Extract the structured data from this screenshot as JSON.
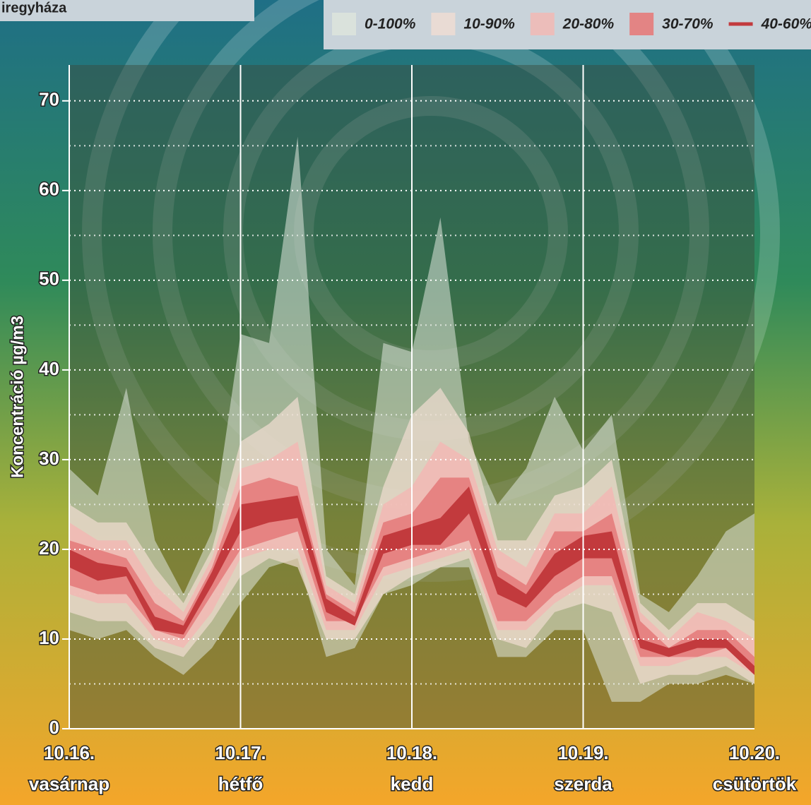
{
  "chart_data": {
    "type": "fan",
    "title": "iregyháza",
    "y_label": "Koncentráció µg/m3",
    "x": [
      0,
      4,
      8,
      12,
      16,
      20,
      24,
      28,
      32,
      36,
      40,
      44,
      48,
      52,
      56,
      60,
      64,
      68,
      72,
      76,
      80,
      84,
      88,
      92,
      96
    ],
    "xlim": [
      0,
      96
    ],
    "xticks": [
      {
        "value": 0,
        "label": "10.16."
      },
      {
        "value": 24,
        "label": "10.17."
      },
      {
        "value": 48,
        "label": "10.18."
      },
      {
        "value": 72,
        "label": "10.19."
      },
      {
        "value": 96,
        "label": "10.20."
      }
    ],
    "weekdays": [
      "vasárnap",
      "hétfő",
      "kedd",
      "szerda",
      "csütörtök"
    ],
    "ylim": [
      0,
      74
    ],
    "yticks": [
      0,
      10,
      20,
      30,
      40,
      50,
      60,
      70
    ],
    "minor_yticks": [
      5,
      15,
      25,
      35,
      45,
      55,
      65
    ],
    "grid": true,
    "series": [
      {
        "name": "0-100%",
        "color": "#dfe6dc",
        "opacity": 0.55,
        "marker": "square",
        "upper": [
          29,
          26,
          38,
          21,
          15,
          22,
          44,
          43,
          66,
          20,
          16,
          43,
          42,
          57,
          32,
          25,
          29,
          37,
          31,
          35,
          15,
          13,
          17,
          22,
          24
        ],
        "lower": [
          11,
          10,
          11,
          8,
          6,
          9,
          14,
          18,
          19,
          8,
          9,
          15,
          16,
          18,
          18,
          8,
          8,
          11,
          11,
          3,
          3,
          5,
          5,
          6,
          5
        ]
      },
      {
        "name": "10-90%",
        "color": "#f1ddd2",
        "opacity": 0.7,
        "marker": "square",
        "upper": [
          25,
          23,
          23,
          18,
          14,
          20,
          32,
          34,
          37,
          17,
          15,
          27,
          35,
          38,
          33,
          21,
          21,
          26,
          27,
          30,
          14,
          11,
          14,
          14,
          12
        ],
        "lower": [
          13,
          12,
          12,
          9,
          8,
          12,
          17,
          19,
          18,
          10,
          10,
          15,
          17,
          18,
          19,
          10,
          9,
          13,
          14,
          13,
          5,
          6,
          6,
          7,
          5
        ]
      },
      {
        "name": "20-80%",
        "color": "#f2b9b4",
        "opacity": 0.85,
        "marker": "square",
        "upper": [
          23,
          21,
          21,
          16,
          13,
          19,
          29,
          30,
          32,
          16,
          14,
          25,
          27,
          32,
          30,
          20,
          18,
          24,
          24,
          27,
          13,
          10,
          13,
          12,
          10
        ],
        "lower": [
          15,
          14,
          14,
          10,
          9,
          13,
          19,
          20,
          20,
          11,
          11,
          17,
          18,
          19,
          20,
          11,
          11,
          14,
          16,
          16,
          7,
          7,
          8,
          8,
          6
        ]
      },
      {
        "name": "30-70%",
        "color": "#e57f80",
        "opacity": 0.95,
        "marker": "square",
        "upper": [
          21,
          20,
          19,
          14,
          12,
          18,
          27,
          28,
          27,
          15,
          13,
          23,
          24,
          28,
          28,
          18,
          16,
          22,
          22,
          24,
          12,
          9,
          11,
          11,
          8
        ],
        "lower": [
          16,
          15,
          15,
          11,
          10,
          15,
          20,
          21,
          22,
          12,
          12,
          18,
          19,
          20,
          21,
          12,
          12,
          15,
          17,
          17,
          8,
          8,
          8,
          9,
          6
        ]
      },
      {
        "name": "40-60%",
        "color": "#c23a3d",
        "opacity": 1,
        "marker": "line",
        "upper": [
          20,
          18.5,
          18,
          12.5,
          11.5,
          17.5,
          25,
          25.5,
          26,
          14.5,
          12.5,
          21.5,
          22.5,
          23.5,
          27,
          17,
          15,
          19.5,
          21.5,
          22,
          10,
          9,
          10,
          10,
          7
        ],
        "lower": [
          18,
          16.5,
          17,
          11,
          10.5,
          16,
          22,
          23,
          23.5,
          13,
          11.5,
          19.5,
          20.5,
          20.5,
          24,
          15,
          13.5,
          17,
          19,
          19,
          9,
          8,
          9,
          9,
          6
        ]
      }
    ]
  }
}
